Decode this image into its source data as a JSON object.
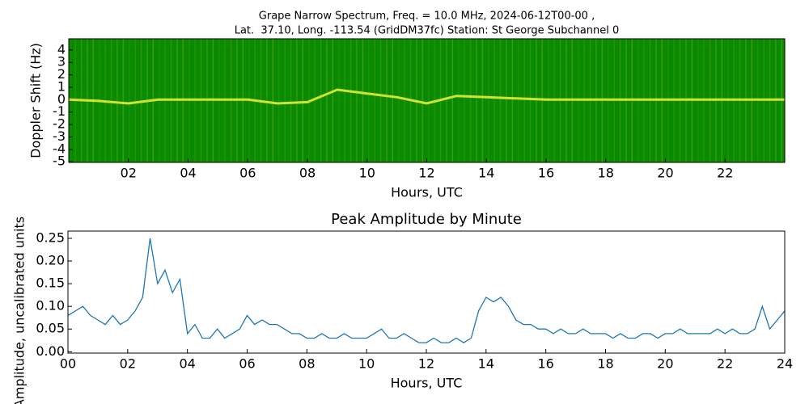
{
  "chart_data": [
    {
      "type": "spectrogram",
      "title": [
        "Grape Narrow Spectrum, Freq. = 10.0 MHz, 2024-06-12T00-00 ,",
        "Lat.  37.10, Long. -113.54 (GridDM37fc) Station: St George Subchannel 0"
      ],
      "x_label": "Hours, UTC",
      "y_label": "Doppler Shift (Hz)",
      "background_color": "#0a8a00",
      "color": "#f2f23a",
      "x": [
        0,
        1,
        2,
        3,
        4,
        5,
        6,
        7,
        8,
        9,
        10,
        11,
        12,
        13,
        14,
        15,
        16,
        17,
        18,
        19,
        20,
        21,
        22,
        23,
        24
      ],
      "values": [
        0,
        -0.1,
        -0.3,
        0,
        0,
        0,
        0,
        -0.3,
        -0.2,
        0.8,
        0.5,
        0.2,
        -0.3,
        0.3,
        0.2,
        0.1,
        0,
        0,
        0,
        0,
        0,
        0,
        0,
        0,
        0
      ],
      "xlim": [
        0,
        24
      ],
      "ylim": [
        -5.05,
        4.9
      ],
      "xticks": [
        {
          "value": 2,
          "label": "02"
        },
        {
          "value": 4,
          "label": "04"
        },
        {
          "value": 6,
          "label": "06"
        },
        {
          "value": 8,
          "label": "08"
        },
        {
          "value": 10,
          "label": "10"
        },
        {
          "value": 12,
          "label": "12"
        },
        {
          "value": 14,
          "label": "14"
        },
        {
          "value": 16,
          "label": "16"
        },
        {
          "value": 18,
          "label": "18"
        },
        {
          "value": 20,
          "label": "20"
        },
        {
          "value": 22,
          "label": "22"
        }
      ],
      "yticks": [
        4,
        3,
        2,
        1,
        0,
        -1,
        -2,
        -3,
        -4,
        -5
      ]
    },
    {
      "type": "line",
      "title": "Peak Amplitude by Minute",
      "x_label": "Hours, UTC",
      "y_label": "Amplitude, uncalibrated units",
      "color": "#1f77b4",
      "x": [
        0,
        0.25,
        0.5,
        0.75,
        1,
        1.25,
        1.5,
        1.75,
        2,
        2.25,
        2.5,
        2.75,
        3,
        3.25,
        3.5,
        3.75,
        4,
        4.25,
        4.5,
        4.75,
        5,
        5.25,
        5.5,
        5.75,
        6,
        6.25,
        6.5,
        6.75,
        7,
        7.25,
        7.5,
        7.75,
        8,
        8.25,
        8.5,
        8.75,
        9,
        9.25,
        9.5,
        9.75,
        10,
        10.25,
        10.5,
        10.75,
        11,
        11.25,
        11.5,
        11.75,
        12,
        12.25,
        12.5,
        12.75,
        13,
        13.25,
        13.5,
        13.75,
        14,
        14.25,
        14.5,
        14.75,
        15,
        15.25,
        15.5,
        15.75,
        16,
        16.25,
        16.5,
        16.75,
        17,
        17.25,
        17.5,
        17.75,
        18,
        18.25,
        18.5,
        18.75,
        19,
        19.25,
        19.5,
        19.75,
        20,
        20.25,
        20.5,
        20.75,
        21,
        21.25,
        21.5,
        21.75,
        22,
        22.25,
        22.5,
        22.75,
        23,
        23.25,
        23.5,
        23.75,
        24
      ],
      "values": [
        0.08,
        0.09,
        0.1,
        0.08,
        0.07,
        0.06,
        0.08,
        0.06,
        0.07,
        0.09,
        0.12,
        0.25,
        0.15,
        0.18,
        0.13,
        0.16,
        0.04,
        0.06,
        0.03,
        0.03,
        0.05,
        0.03,
        0.04,
        0.05,
        0.08,
        0.06,
        0.07,
        0.06,
        0.06,
        0.05,
        0.04,
        0.04,
        0.03,
        0.03,
        0.04,
        0.03,
        0.03,
        0.04,
        0.03,
        0.03,
        0.03,
        0.04,
        0.05,
        0.03,
        0.03,
        0.04,
        0.03,
        0.02,
        0.02,
        0.03,
        0.02,
        0.02,
        0.03,
        0.02,
        0.03,
        0.09,
        0.12,
        0.11,
        0.12,
        0.1,
        0.07,
        0.06,
        0.06,
        0.05,
        0.05,
        0.04,
        0.05,
        0.04,
        0.04,
        0.05,
        0.04,
        0.04,
        0.04,
        0.03,
        0.04,
        0.03,
        0.03,
        0.04,
        0.04,
        0.03,
        0.04,
        0.04,
        0.05,
        0.04,
        0.04,
        0.04,
        0.04,
        0.05,
        0.04,
        0.05,
        0.04,
        0.04,
        0.05,
        0.1,
        0.05,
        0.07,
        0.09
      ],
      "xlim": [
        0,
        24
      ],
      "ylim": [
        -0.003,
        0.266
      ],
      "xticks": [
        {
          "value": 0,
          "label": "00"
        },
        {
          "value": 2,
          "label": "02"
        },
        {
          "value": 4,
          "label": "04"
        },
        {
          "value": 6,
          "label": "06"
        },
        {
          "value": 8,
          "label": "08"
        },
        {
          "value": 10,
          "label": "10"
        },
        {
          "value": 12,
          "label": "12"
        },
        {
          "value": 14,
          "label": "14"
        },
        {
          "value": 16,
          "label": "16"
        },
        {
          "value": 18,
          "label": "18"
        },
        {
          "value": 20,
          "label": "20"
        },
        {
          "value": 22,
          "label": "22"
        },
        {
          "value": 24,
          "label": "24"
        }
      ],
      "yticks": [
        {
          "value": 0,
          "label": "0.00"
        },
        {
          "value": 0.05,
          "label": "0.05"
        },
        {
          "value": 0.1,
          "label": "0.10"
        },
        {
          "value": 0.15,
          "label": "0.15"
        },
        {
          "value": 0.2,
          "label": "0.20"
        },
        {
          "value": 0.25,
          "label": "0.25"
        }
      ]
    }
  ]
}
